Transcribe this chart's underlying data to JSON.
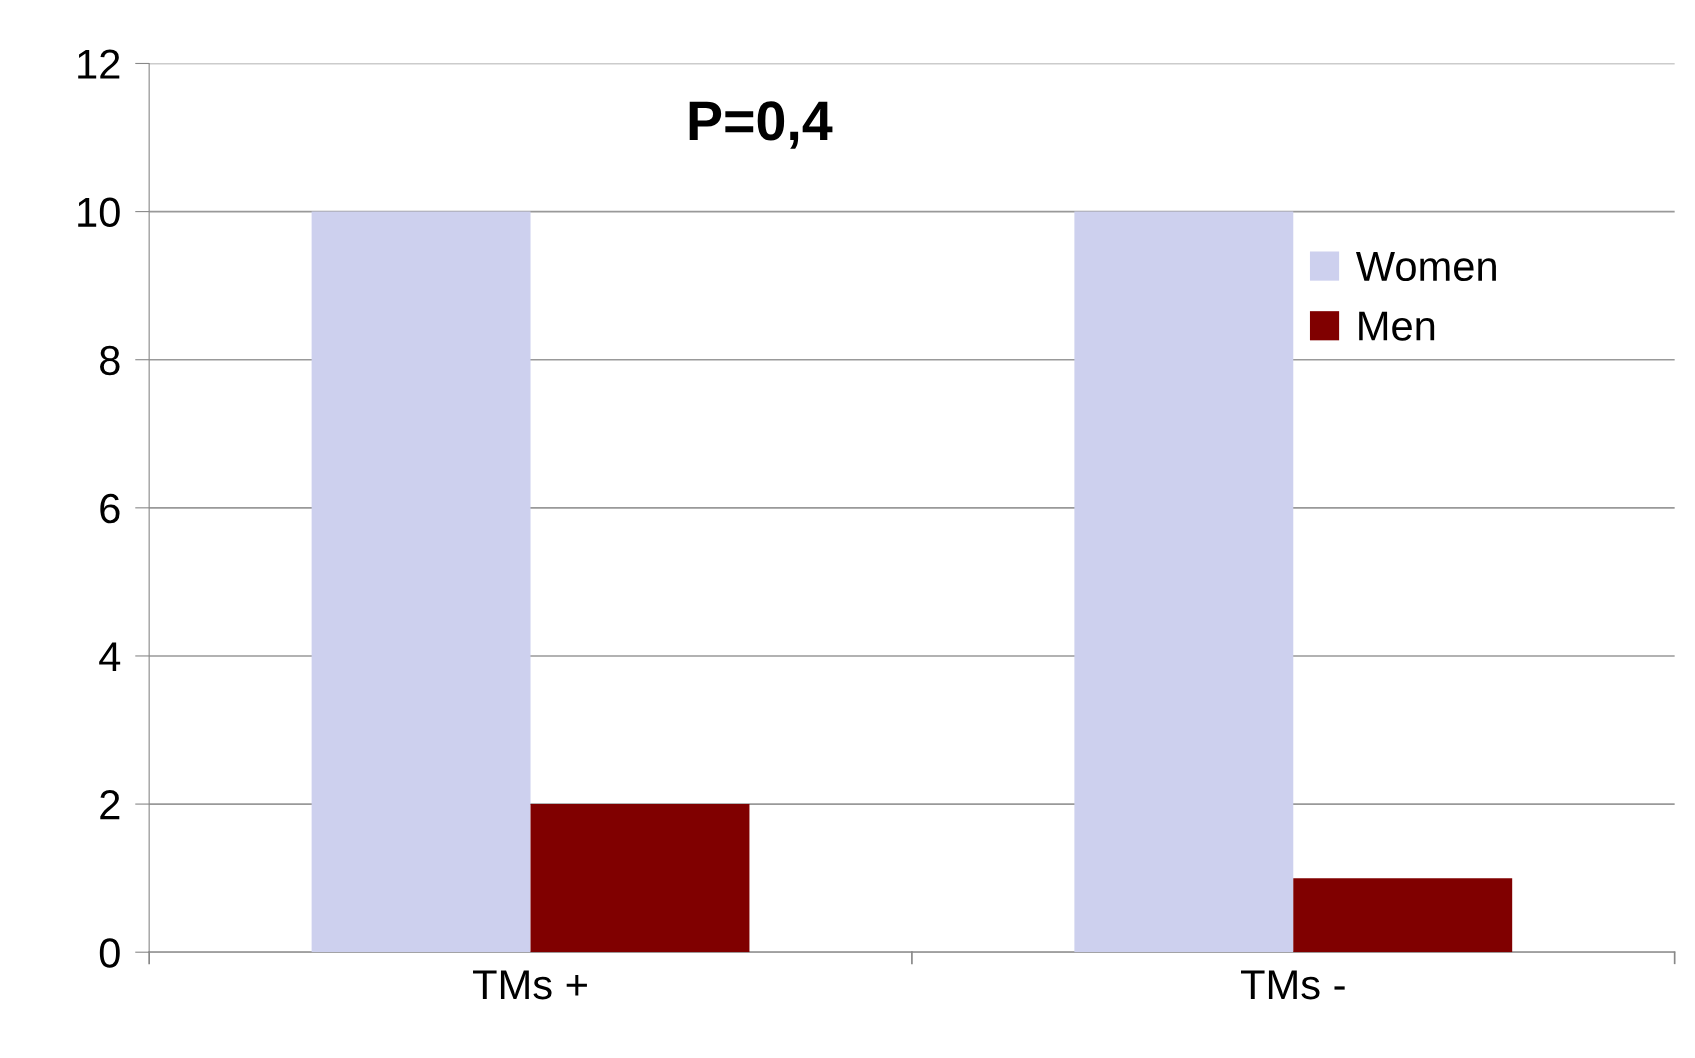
{
  "chart_data": {
    "type": "bar",
    "categories": [
      "TMs +",
      "TMs -"
    ],
    "series": [
      {
        "name": "Women",
        "color": "#cdd0ee",
        "values": [
          10,
          10
        ]
      },
      {
        "name": "Men",
        "color": "#800000",
        "values": [
          2,
          1
        ]
      }
    ],
    "ylim": [
      0,
      12
    ],
    "yticks": [
      0,
      2,
      4,
      6,
      8,
      10,
      12
    ],
    "grid": "y",
    "legend": "top right",
    "annotations": [
      "P=0,4"
    ]
  }
}
